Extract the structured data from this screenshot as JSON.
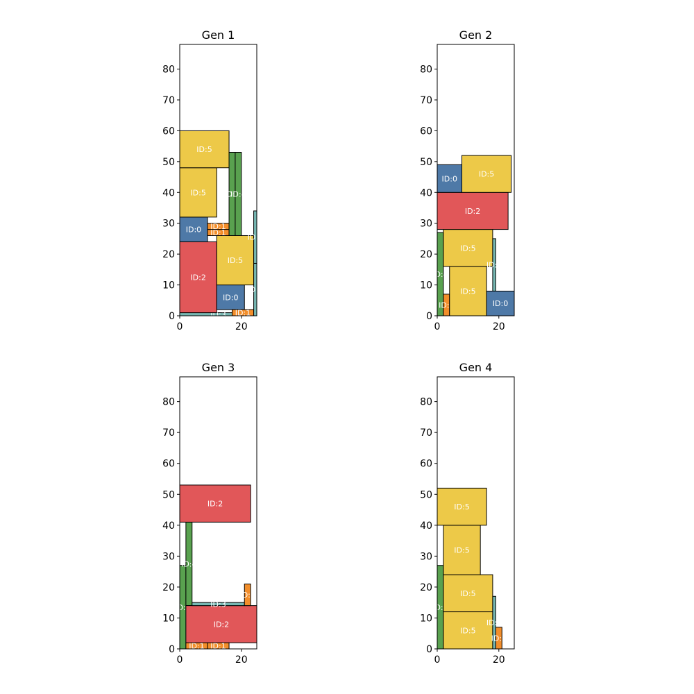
{
  "chart_data": [
    {
      "type": "rectangle-packing",
      "title": "Gen 1",
      "xlim": [
        0,
        25
      ],
      "ylim": [
        0,
        88
      ],
      "xticks": [
        0,
        20
      ],
      "yticks": [
        0,
        10,
        20,
        30,
        40,
        50,
        60,
        70,
        80
      ],
      "rects": [
        {
          "id": "ID:3",
          "x": 0,
          "y": 0,
          "w": 25,
          "h": 1,
          "label": "ID:3"
        },
        {
          "id": "ID:2",
          "x": 0,
          "y": 1,
          "w": 12,
          "h": 23,
          "label": "ID:2"
        },
        {
          "id": "ID:0",
          "x": 0,
          "y": 24,
          "w": 9,
          "h": 8,
          "label": "ID:0"
        },
        {
          "id": "ID:5",
          "x": 0,
          "y": 32,
          "w": 12,
          "h": 16,
          "label": "ID:5"
        },
        {
          "id": "ID:5",
          "x": 0,
          "y": 48,
          "w": 16,
          "h": 12,
          "label": "ID:5"
        },
        {
          "id": "ID:1",
          "x": 9,
          "y": 26,
          "w": 7,
          "h": 2,
          "label": "ID:1"
        },
        {
          "id": "ID:1",
          "x": 9,
          "y": 28,
          "w": 7,
          "h": 2,
          "label": "ID:1"
        },
        {
          "id": "ID:0",
          "x": 12,
          "y": 2,
          "w": 9,
          "h": 8,
          "label": "ID:0"
        },
        {
          "id": "ID:5",
          "x": 12,
          "y": 10,
          "w": 12,
          "h": 16,
          "label": "ID:5"
        },
        {
          "id": "ID:4",
          "x": 16,
          "y": 26,
          "w": 2,
          "h": 27,
          "label": "ID:4"
        },
        {
          "id": "ID:4",
          "x": 18,
          "y": 26,
          "w": 2,
          "h": 27,
          "label": "ID:4"
        },
        {
          "id": "ID:1",
          "x": 17,
          "y": 0,
          "w": 7,
          "h": 2,
          "label": "ID:1"
        },
        {
          "id": "ID:3",
          "x": 24,
          "y": 0,
          "w": 1,
          "h": 17,
          "label": "ID:3"
        },
        {
          "id": "ID:3",
          "x": 24,
          "y": 17,
          "w": 1,
          "h": 17,
          "label": "ID:3"
        }
      ]
    },
    {
      "type": "rectangle-packing",
      "title": "Gen 2",
      "xlim": [
        0,
        25
      ],
      "ylim": [
        0,
        88
      ],
      "xticks": [
        0,
        20
      ],
      "yticks": [
        0,
        10,
        20,
        30,
        40,
        50,
        60,
        70,
        80
      ],
      "rects": [
        {
          "id": "ID:4",
          "x": 0,
          "y": 0,
          "w": 2,
          "h": 27,
          "label": "ID:4"
        },
        {
          "id": "ID:1",
          "x": 2,
          "y": 0,
          "w": 2,
          "h": 7,
          "label": "ID:1"
        },
        {
          "id": "ID:5",
          "x": 4,
          "y": 0,
          "w": 12,
          "h": 16,
          "label": "ID:5"
        },
        {
          "id": "ID:5",
          "x": 2,
          "y": 16,
          "w": 16,
          "h": 12,
          "label": "ID:5"
        },
        {
          "id": "ID:3",
          "x": 18,
          "y": 8,
          "w": 1,
          "h": 17,
          "label": "ID:3"
        },
        {
          "id": "ID:0",
          "x": 16,
          "y": 0,
          "w": 9,
          "h": 8,
          "label": "ID:0"
        },
        {
          "id": "ID:2",
          "x": 0,
          "y": 28,
          "w": 23,
          "h": 12,
          "label": "ID:2"
        },
        {
          "id": "ID:0",
          "x": 0,
          "y": 40,
          "w": 8,
          "h": 9,
          "label": "ID:0"
        },
        {
          "id": "ID:5",
          "x": 8,
          "y": 40,
          "w": 16,
          "h": 12,
          "label": "ID:5"
        }
      ]
    },
    {
      "type": "rectangle-packing",
      "title": "Gen 3",
      "xlim": [
        0,
        25
      ],
      "ylim": [
        0,
        88
      ],
      "xticks": [
        0,
        20
      ],
      "yticks": [
        0,
        10,
        20,
        30,
        40,
        50,
        60,
        70,
        80
      ],
      "rects": [
        {
          "id": "ID:4",
          "x": 0,
          "y": 0,
          "w": 2,
          "h": 27,
          "label": "ID:4"
        },
        {
          "id": "ID:4",
          "x": 2,
          "y": 14,
          "w": 2,
          "h": 27,
          "label": "ID:4"
        },
        {
          "id": "ID:1",
          "x": 2,
          "y": 0,
          "w": 7,
          "h": 2,
          "label": "ID:1"
        },
        {
          "id": "ID:1",
          "x": 9,
          "y": 0,
          "w": 7,
          "h": 2,
          "label": "ID:1"
        },
        {
          "id": "ID:2",
          "x": 2,
          "y": 2,
          "w": 23,
          "h": 12,
          "label": "ID:2"
        },
        {
          "id": "ID:3",
          "x": 4,
          "y": 14,
          "w": 17,
          "h": 1,
          "label": "ID:3"
        },
        {
          "id": "ID:1",
          "x": 21,
          "y": 14,
          "w": 2,
          "h": 7,
          "label": "ID:1"
        },
        {
          "id": "ID:2",
          "x": 0,
          "y": 41,
          "w": 23,
          "h": 12,
          "label": "ID:2"
        }
      ]
    },
    {
      "type": "rectangle-packing",
      "title": "Gen 4",
      "xlim": [
        0,
        25
      ],
      "ylim": [
        0,
        88
      ],
      "xticks": [
        0,
        20
      ],
      "yticks": [
        0,
        10,
        20,
        30,
        40,
        50,
        60,
        70,
        80
      ],
      "rects": [
        {
          "id": "ID:4",
          "x": 0,
          "y": 0,
          "w": 2,
          "h": 27,
          "label": "ID:4"
        },
        {
          "id": "ID:5",
          "x": 2,
          "y": 0,
          "w": 16,
          "h": 12,
          "label": "ID:5"
        },
        {
          "id": "ID:5",
          "x": 2,
          "y": 12,
          "w": 16,
          "h": 12,
          "label": "ID:5"
        },
        {
          "id": "ID:3",
          "x": 18,
          "y": 0,
          "w": 1,
          "h": 17,
          "label": "ID:3"
        },
        {
          "id": "ID:1",
          "x": 19,
          "y": 0,
          "w": 2,
          "h": 7,
          "label": "ID:1"
        },
        {
          "id": "ID:5",
          "x": 2,
          "y": 24,
          "w": 12,
          "h": 16,
          "label": "ID:5"
        },
        {
          "id": "ID:5",
          "x": 0,
          "y": 40,
          "w": 16,
          "h": 12,
          "label": "ID:5"
        }
      ]
    }
  ],
  "colors": {
    "ID:0": "#4e79a7",
    "ID:1": "#f28e2b",
    "ID:2": "#e15759",
    "ID:3": "#76b7b2",
    "ID:4": "#59a14f",
    "ID:5": "#edc948"
  }
}
